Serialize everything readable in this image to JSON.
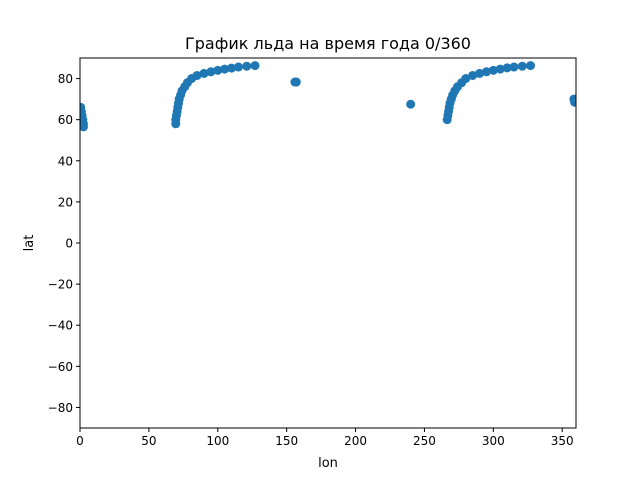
{
  "chart_data": {
    "type": "scatter",
    "title": "График льда на время года 0/360",
    "xlabel": "lon",
    "ylabel": "lat",
    "xlim": [
      0,
      360
    ],
    "ylim": [
      -90,
      90
    ],
    "x_ticks": [
      0,
      50,
      100,
      150,
      200,
      250,
      300,
      350
    ],
    "y_ticks": [
      -80,
      -60,
      -40,
      -20,
      0,
      20,
      40,
      60,
      80
    ],
    "y_tick_labels": [
      "−80",
      "−60",
      "−40",
      "−20",
      "0",
      "20",
      "40",
      "60",
      "80"
    ],
    "grid": false,
    "legend": "none",
    "marker_color": "#1f77b4",
    "series": [
      {
        "points": [
          [
            0.5,
            66
          ],
          [
            1,
            64
          ],
          [
            1.5,
            62
          ],
          [
            2,
            60
          ],
          [
            2.5,
            58
          ],
          [
            2.5,
            56.5
          ],
          [
            69.5,
            58
          ],
          [
            69.5,
            60
          ],
          [
            70,
            62
          ],
          [
            70.5,
            64
          ],
          [
            71,
            66
          ],
          [
            71.5,
            68
          ],
          [
            72,
            70
          ],
          [
            73,
            72
          ],
          [
            74,
            74
          ],
          [
            76,
            76
          ],
          [
            78,
            78
          ],
          [
            81,
            80
          ],
          [
            85,
            81.5
          ],
          [
            90,
            82.5
          ],
          [
            95,
            83.3
          ],
          [
            100,
            84
          ],
          [
            105,
            84.6
          ],
          [
            110,
            85.1
          ],
          [
            115,
            85.6
          ],
          [
            121,
            86
          ],
          [
            127,
            86.3
          ],
          [
            156,
            78.3
          ],
          [
            157,
            78.3
          ],
          [
            240,
            67.5
          ],
          [
            266.5,
            60
          ],
          [
            267,
            62
          ],
          [
            267.5,
            64
          ],
          [
            268,
            66
          ],
          [
            268.5,
            68
          ],
          [
            269.5,
            70
          ],
          [
            270.5,
            72
          ],
          [
            272,
            74
          ],
          [
            274,
            76
          ],
          [
            277,
            78
          ],
          [
            280,
            80
          ],
          [
            285,
            81.5
          ],
          [
            290,
            82.5
          ],
          [
            295,
            83.3
          ],
          [
            300,
            84
          ],
          [
            305,
            84.6
          ],
          [
            310,
            85.2
          ],
          [
            315,
            85.6
          ],
          [
            321,
            86
          ],
          [
            327,
            86.3
          ],
          [
            358.5,
            70
          ],
          [
            359,
            68.5
          ],
          [
            359.5,
            69.5
          ]
        ]
      }
    ]
  }
}
